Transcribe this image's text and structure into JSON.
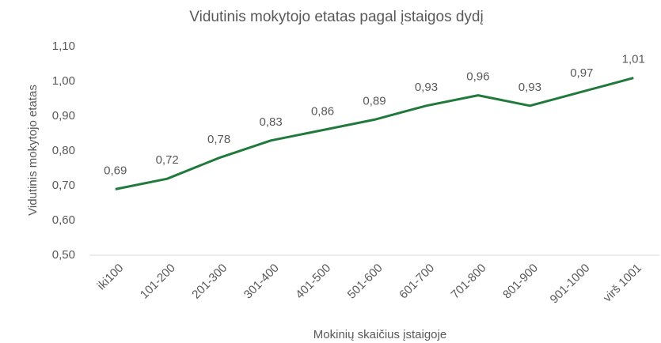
{
  "chart_data": {
    "type": "line",
    "title": "Vidutinis mokytojo etatas pagal įstaigos dydį",
    "x_label": "Mokinių skaičius įstaigoje",
    "y_label": "Vidutinis mokytojo etatas",
    "categories": [
      "iki100",
      "101-200",
      "201-300",
      "301-400",
      "401-500",
      "501-600",
      "601-700",
      "701-800",
      "801-900",
      "901-1000",
      "virš 1001"
    ],
    "series": [
      {
        "name": "Vidutinis mokytojo etatas",
        "color": "#217a3c",
        "values": [
          0.69,
          0.72,
          0.78,
          0.83,
          0.86,
          0.89,
          0.93,
          0.96,
          0.93,
          0.97,
          1.01
        ],
        "value_labels": [
          "0,69",
          "0,72",
          "0,78",
          "0,83",
          "0,86",
          "0,89",
          "0,93",
          "0,96",
          "0,93",
          "0,97",
          "1,01"
        ]
      }
    ],
    "ylim": [
      0.5,
      1.1
    ],
    "yticks": [
      {
        "value": 0.5,
        "label": "0,50"
      },
      {
        "value": 0.6,
        "label": "0,60"
      },
      {
        "value": 0.7,
        "label": "0,70"
      },
      {
        "value": 0.8,
        "label": "0,80"
      },
      {
        "value": 0.9,
        "label": "0,90"
      },
      {
        "value": 1.0,
        "label": "1,00"
      },
      {
        "value": 1.1,
        "label": "1,10"
      }
    ],
    "grid": false
  }
}
